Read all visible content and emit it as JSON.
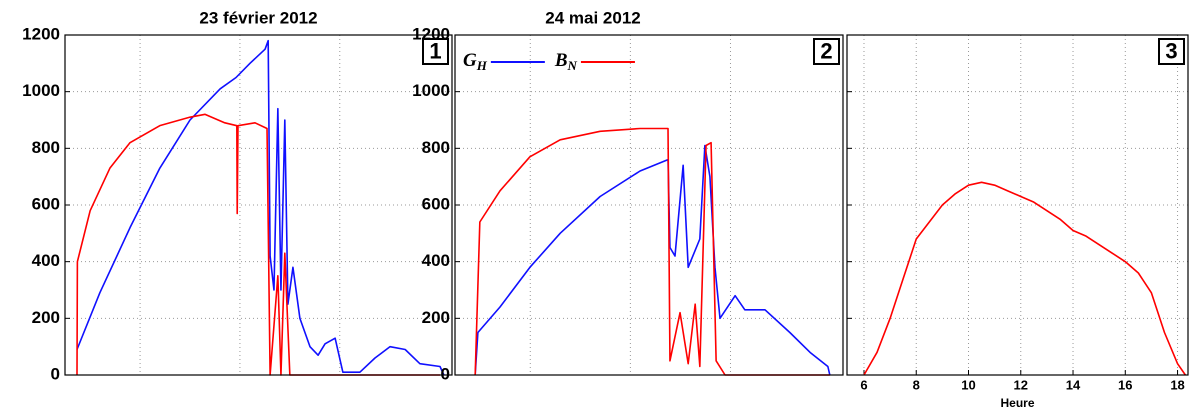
{
  "chart_data": [
    {
      "type": "line",
      "title": "23 février 2012",
      "annotation": "1",
      "xlim": [
        0,
        100
      ],
      "ylim": [
        0,
        1200
      ],
      "yticks": [
        0,
        200,
        400,
        600,
        800,
        1000,
        1200
      ],
      "grid": true,
      "series": [
        {
          "name": "GH",
          "color": "#1010ff",
          "x": [
            3.1,
            9.0,
            16.8,
            24.5,
            32.3,
            40.1,
            44.2,
            47.8,
            51.7,
            52.5,
            53.0,
            54.0,
            55.0,
            55.8,
            56.8,
            57.6,
            58.9,
            60.7,
            63.3,
            65.4,
            67.2,
            69.8,
            71.8,
            76.2,
            80.1,
            84.0,
            87.9,
            91.7,
            96.9,
            97.9
          ],
          "values": [
            90,
            290,
            520,
            730,
            900,
            1010,
            1050,
            1100,
            1150,
            1180,
            420,
            300,
            940,
            300,
            900,
            250,
            380,
            200,
            100,
            70,
            110,
            130,
            10,
            10,
            60,
            100,
            90,
            40,
            30,
            0
          ]
        },
        {
          "name": "BN",
          "color": "#ff0000",
          "x": [
            3.1,
            3.2,
            6.5,
            11.6,
            16.8,
            24.5,
            32.3,
            36.2,
            41.3,
            44.4,
            44.5,
            44.7,
            49.1,
            52.2,
            53.0,
            55.0,
            55.8,
            56.8,
            58.1,
            96.9
          ],
          "values": [
            0,
            400,
            580,
            730,
            820,
            880,
            910,
            920,
            890,
            880,
            570,
            880,
            890,
            870,
            0,
            350,
            0,
            430,
            0,
            0
          ]
        }
      ]
    },
    {
      "type": "line",
      "title": "24 mai 2012",
      "annotation": "2",
      "legend": "top-left",
      "xlim": [
        0,
        100
      ],
      "ylim": [
        0,
        1200
      ],
      "yticks": [
        0,
        200,
        400,
        600,
        800,
        1000,
        1200
      ],
      "grid": true,
      "series": [
        {
          "name": "GH",
          "color": "#1010ff",
          "x": [
            5.2,
            5.9,
            11.6,
            19.3,
            27.1,
            37.4,
            47.7,
            54.9,
            55.4,
            56.7,
            58.8,
            60.1,
            63.1,
            64.4,
            65.7,
            67.0,
            68.3,
            72.2,
            74.7,
            79.9,
            86.3,
            91.5,
            96.1,
            96.6
          ],
          "values": [
            0,
            150,
            240,
            380,
            500,
            630,
            720,
            760,
            450,
            420,
            740,
            380,
            480,
            810,
            700,
            380,
            200,
            280,
            230,
            230,
            150,
            80,
            30,
            0
          ]
        },
        {
          "name": "BN",
          "color": "#ff0000",
          "x": [
            5.2,
            6.4,
            11.6,
            19.3,
            27.1,
            37.4,
            47.7,
            54.9,
            55.4,
            58.0,
            60.1,
            61.9,
            63.1,
            64.7,
            66.0,
            67.3,
            69.6,
            96.6
          ],
          "values": [
            0,
            540,
            650,
            770,
            830,
            860,
            870,
            870,
            50,
            220,
            40,
            250,
            30,
            810,
            820,
            50,
            0,
            0
          ]
        }
      ]
    },
    {
      "type": "line",
      "annotation": "3",
      "x_label": "Heure",
      "show_ytick_labels": false,
      "xlim": [
        5.35,
        18.4
      ],
      "xticks": [
        6,
        8,
        10,
        12,
        14,
        16,
        18
      ],
      "ylim": [
        0,
        1200
      ],
      "yticks": [
        0,
        200,
        400,
        600,
        800,
        1000,
        1200
      ],
      "grid": true,
      "series": [
        {
          "color": "#ff0000",
          "x": [
            6.0,
            6.5,
            7.0,
            7.5,
            8.0,
            8.5,
            9.0,
            9.5,
            10.0,
            10.5,
            11.0,
            11.5,
            12.0,
            12.5,
            13.0,
            13.5,
            14.0,
            14.5,
            15.0,
            15.5,
            16.0,
            16.5,
            17.0,
            17.5,
            18.0,
            18.3
          ],
          "values": [
            0,
            80,
            200,
            340,
            480,
            540,
            600,
            640,
            670,
            680,
            670,
            650,
            630,
            610,
            580,
            550,
            510,
            490,
            460,
            430,
            400,
            360,
            290,
            150,
            40,
            0
          ]
        }
      ]
    }
  ]
}
